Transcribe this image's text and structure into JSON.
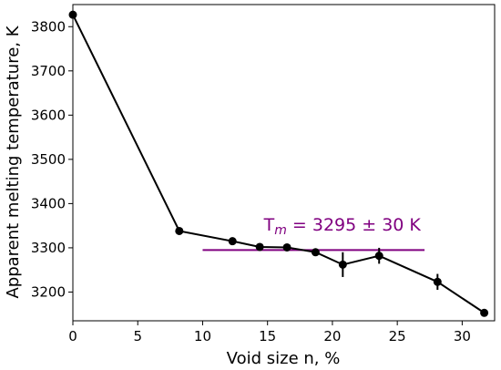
{
  "chart_data": {
    "type": "line",
    "xlabel": "Void size n, %",
    "ylabel": "Apparent melting temperature, K",
    "xlim": [
      0,
      32.5
    ],
    "ylim": [
      3135,
      3850
    ],
    "x_ticks": [
      "0",
      "5",
      "10",
      "15",
      "20",
      "25",
      "30"
    ],
    "y_ticks": [
      "3200",
      "3300",
      "3400",
      "3500",
      "3600",
      "3700",
      "3800"
    ],
    "series": [
      {
        "color": "#000000",
        "points": [
          {
            "x": 0,
            "y": 3827,
            "err": 0
          },
          {
            "x": 8.2,
            "y": 3338,
            "err": 0
          },
          {
            "x": 12.3,
            "y": 3315,
            "err": 0
          },
          {
            "x": 14.4,
            "y": 3302,
            "err": 0
          },
          {
            "x": 16.5,
            "y": 3301,
            "err": 0
          },
          {
            "x": 18.7,
            "y": 3290,
            "err": 0
          },
          {
            "x": 20.8,
            "y": 3262,
            "err": 28
          },
          {
            "x": 23.6,
            "y": 3282,
            "err": 18
          },
          {
            "x": 28.1,
            "y": 3223,
            "err": 18
          },
          {
            "x": 31.7,
            "y": 3153,
            "err": 0
          }
        ]
      }
    ],
    "reference_line": {
      "y": 3295,
      "x_start": 10,
      "x_end": 27.1,
      "color": "#800080"
    },
    "annotation": {
      "prefix": "T",
      "subscript": "m",
      "rest": " = 3295 ± 30 K",
      "x": 9.8,
      "y": 3360,
      "color": "#800080"
    }
  }
}
